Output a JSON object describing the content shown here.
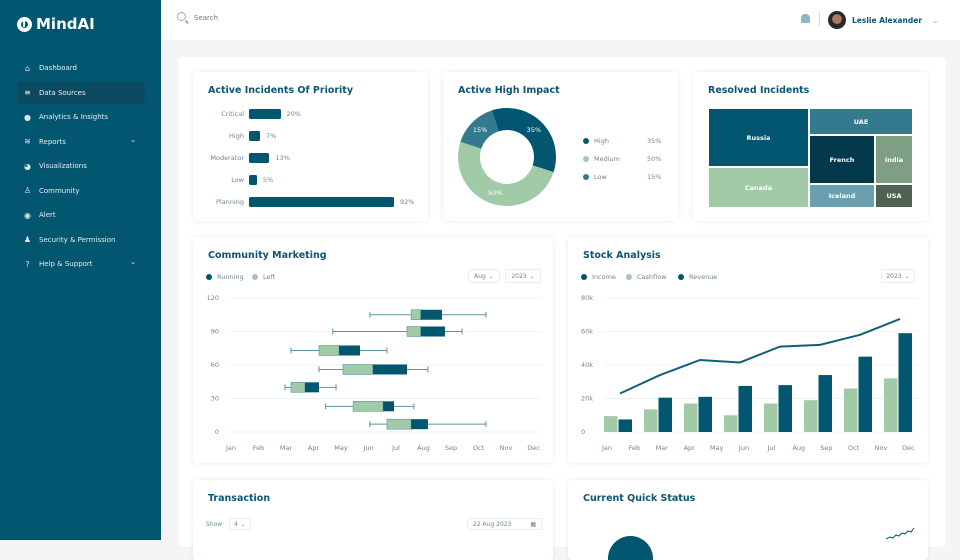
{
  "app": {
    "name": "MindAI"
  },
  "sidebar": {
    "items": [
      {
        "label": "Dashboard",
        "icon": "home-icon",
        "glyph": "⌂"
      },
      {
        "label": "Data Sources",
        "icon": "database-icon",
        "glyph": "≡",
        "active": true
      },
      {
        "label": "Analytics & Insights",
        "icon": "lightbulb-icon",
        "glyph": "●"
      },
      {
        "label": "Reports",
        "icon": "layers-icon",
        "glyph": "≋",
        "chevron": true
      },
      {
        "label": "Visualizations",
        "icon": "pie-chart-icon",
        "glyph": "◕"
      },
      {
        "label": "Community",
        "icon": "people-icon",
        "glyph": "♙"
      },
      {
        "label": "Alert",
        "icon": "alert-icon",
        "glyph": "◉"
      },
      {
        "label": "Security & Permission",
        "icon": "user-lock-icon",
        "glyph": "♟"
      },
      {
        "label": "Help & Support",
        "icon": "help-icon",
        "glyph": "?",
        "chevron": true
      }
    ]
  },
  "header": {
    "search_placeholder": "Search",
    "user_name": "Leslie Alexander"
  },
  "colors": {
    "primary": "#035670",
    "green": "#a1cba6",
    "teal": "#347a8f",
    "dark": "#02394b",
    "sage": "#7f9f84",
    "slate": "#4f6352",
    "light_teal": "#6a9fb0"
  },
  "priority": {
    "title": "Active Incidents Of Priority",
    "items": [
      {
        "label": "Critical",
        "value": 20,
        "text": "20%"
      },
      {
        "label": "High",
        "value": 7,
        "text": "7%"
      },
      {
        "label": "Moderator",
        "value": 13,
        "text": "13%"
      },
      {
        "label": "Low",
        "value": 5,
        "text": "5%"
      },
      {
        "label": "Planning",
        "value": 92,
        "text": "92%"
      }
    ]
  },
  "impact": {
    "title": "Active High Impact",
    "items": [
      {
        "label": "High",
        "value": 35,
        "text": "35%",
        "color": "#035670"
      },
      {
        "label": "Medium",
        "value": 50,
        "text": "50%",
        "color": "#a1cba6"
      },
      {
        "label": "Low",
        "value": 15,
        "text": "15%",
        "color": "#347a8f"
      }
    ]
  },
  "resolved": {
    "title": "Resolved Incidents",
    "items": [
      {
        "label": "Russia",
        "color": "#035670"
      },
      {
        "label": "Canada",
        "color": "#a1cba6"
      },
      {
        "label": "UAE",
        "color": "#347a8f"
      },
      {
        "label": "French",
        "color": "#02394b"
      },
      {
        "label": "India",
        "color": "#7f9f84"
      },
      {
        "label": "Iceland",
        "color": "#6a9fb0"
      },
      {
        "label": "USA",
        "color": "#4f6352"
      }
    ]
  },
  "community": {
    "title": "Community Marketing",
    "legend": [
      {
        "label": "Running",
        "color": "#035670"
      },
      {
        "label": "Left",
        "color": "#a1cba6"
      }
    ],
    "month_select": "Aug",
    "year_select": "2023"
  },
  "stock": {
    "title": "Stock Analysis",
    "legend": [
      {
        "label": "Income",
        "color": "#035670"
      },
      {
        "label": "Cashflow",
        "color": "#a1cba6"
      },
      {
        "label": "Revenue",
        "color": "#035670"
      }
    ],
    "year_select": "2023"
  },
  "transaction": {
    "title": "Transaction",
    "show_label": "Show",
    "show_value": "4",
    "date": "22 Aug 2023"
  },
  "quick_status": {
    "title": "Current Quick Status"
  },
  "chart_data": [
    {
      "type": "boxplot",
      "orientation": "horizontal",
      "x_categories": [
        "Jan",
        "Feb",
        "Mar",
        "Apr",
        "May",
        "Jun",
        "Jul",
        "Aug",
        "Sep",
        "Oct",
        "Nov",
        "Dec"
      ],
      "yticks": [
        0,
        30,
        60,
        90,
        120
      ],
      "ylim": [
        0,
        120
      ],
      "grid": true,
      "note_units": "x in month index (Jan=0)",
      "boxes": [
        {
          "y": 105,
          "min": 5.05,
          "q1": 6.55,
          "median": 6.9,
          "q3": 7.67,
          "max": 9.27
        },
        {
          "y": 90,
          "min": 3.7,
          "q1": 6.4,
          "median": 6.9,
          "q3": 7.78,
          "max": 8.4
        },
        {
          "y": 73,
          "min": 2.18,
          "q1": 3.2,
          "median": 3.93,
          "q3": 4.69,
          "max": 5.67
        },
        {
          "y": 56,
          "min": 3.2,
          "q1": 4.07,
          "median": 5.16,
          "q3": 6.4,
          "max": 7.16
        },
        {
          "y": 40,
          "min": 1.96,
          "q1": 2.18,
          "median": 2.69,
          "q3": 3.2,
          "max": 3.82
        },
        {
          "y": 23,
          "min": 3.44,
          "q1": 4.44,
          "median": 5.53,
          "q3": 5.93,
          "max": 6.65
        },
        {
          "y": 7,
          "min": 5.05,
          "q1": 5.67,
          "median": 6.55,
          "q3": 7.16,
          "max": 9.27
        }
      ]
    },
    {
      "type": "bar+line",
      "x_categories": [
        "Jan",
        "Feb",
        "Mar",
        "Apr",
        "May",
        "Jun",
        "Jul",
        "Aug",
        "Sep",
        "Oct",
        "Nov",
        "Dec"
      ],
      "yticks": [
        "0",
        "20k",
        "40k",
        "60k",
        "80k"
      ],
      "ylim": [
        0,
        80000
      ],
      "grid": true,
      "series": [
        {
          "name": "Cashflow",
          "type": "bar",
          "values": [
            9500,
            13500,
            17000,
            10000,
            17000,
            19000,
            26000,
            32000
          ]
        },
        {
          "name": "Revenue",
          "type": "bar",
          "values": [
            7500,
            20500,
            21000,
            27500,
            28000,
            34000,
            45000,
            59000
          ]
        },
        {
          "name": "Income",
          "type": "line",
          "values": [
            23000,
            34000,
            43000,
            41500,
            51000,
            52000,
            58000,
            67500
          ]
        }
      ]
    }
  ]
}
